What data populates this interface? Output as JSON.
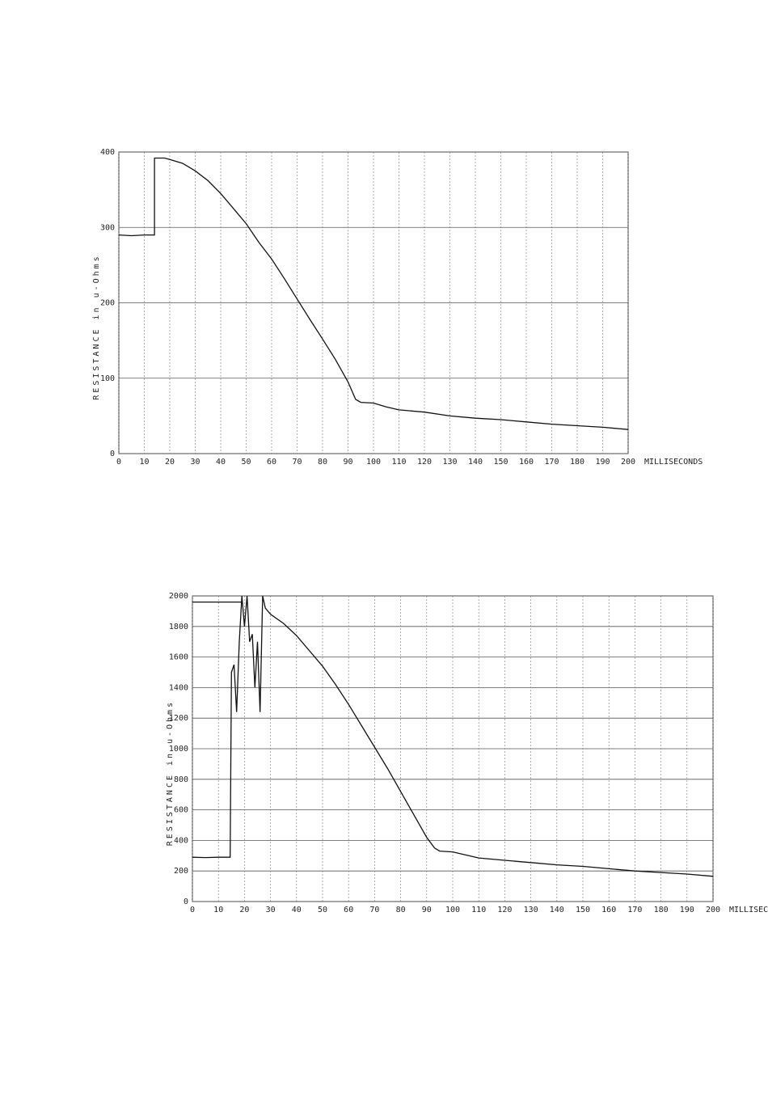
{
  "chart_data": [
    {
      "type": "line",
      "y_label": "RESISTANCE in u-Ohms",
      "x_label": "MILLISECONDS",
      "xlim": [
        0,
        200
      ],
      "ylim": [
        0,
        400
      ],
      "xticks": [
        0,
        10,
        20,
        30,
        40,
        50,
        60,
        70,
        80,
        90,
        100,
        110,
        120,
        130,
        140,
        150,
        160,
        170,
        180,
        190,
        200
      ],
      "yticks": [
        0,
        100,
        200,
        300,
        400
      ],
      "grid": true,
      "series": [
        {
          "color": "#111",
          "x": [
            0,
            5,
            10,
            14,
            14,
            18,
            20,
            25,
            30,
            35,
            40,
            45,
            50,
            55,
            60,
            65,
            70,
            75,
            80,
            85,
            90,
            93,
            95,
            100,
            105,
            110,
            120,
            130,
            140,
            150,
            160,
            170,
            180,
            190,
            200
          ],
          "values": [
            290,
            289,
            290,
            290,
            392,
            392,
            390,
            385,
            375,
            362,
            345,
            325,
            305,
            280,
            258,
            232,
            205,
            178,
            152,
            125,
            95,
            72,
            68,
            67,
            62,
            58,
            55,
            50,
            47,
            45,
            42,
            39,
            37,
            35,
            32
          ]
        }
      ]
    },
    {
      "type": "line",
      "y_label": "RESISTANCE in u-Ohms",
      "x_label": "MILLISECONDS",
      "xlim": [
        0,
        200
      ],
      "ylim": [
        0,
        2000
      ],
      "xticks": [
        0,
        10,
        20,
        30,
        40,
        50,
        60,
        70,
        80,
        90,
        100,
        110,
        120,
        130,
        140,
        150,
        160,
        170,
        180,
        190,
        200
      ],
      "yticks": [
        0,
        200,
        400,
        600,
        800,
        1000,
        1200,
        1400,
        1600,
        1800,
        2000
      ],
      "grid": true,
      "series": [
        {
          "color": "#111",
          "x": [
            0,
            5,
            10,
            14.5,
            15,
            16,
            17,
            18,
            19,
            20,
            21,
            22,
            23,
            24,
            25,
            26,
            27,
            28,
            30,
            35,
            40,
            45,
            50,
            55,
            60,
            65,
            70,
            75,
            80,
            85,
            90,
            93,
            95,
            100,
            105,
            110,
            120,
            130,
            140,
            150,
            160,
            170,
            180,
            190,
            200
          ],
          "values": [
            290,
            288,
            290,
            290,
            1500,
            1550,
            1240,
            1700,
            2000,
            1800,
            2000,
            1700,
            1750,
            1400,
            1700,
            1240,
            2000,
            1920,
            1880,
            1820,
            1740,
            1640,
            1540,
            1420,
            1290,
            1150,
            1010,
            870,
            720,
            570,
            420,
            350,
            330,
            325,
            305,
            285,
            270,
            255,
            240,
            230,
            215,
            200,
            190,
            180,
            165
          ]
        },
        {
          "color": "#111",
          "x": [
            0,
            19
          ],
          "values": [
            1960,
            1960
          ]
        }
      ]
    }
  ]
}
